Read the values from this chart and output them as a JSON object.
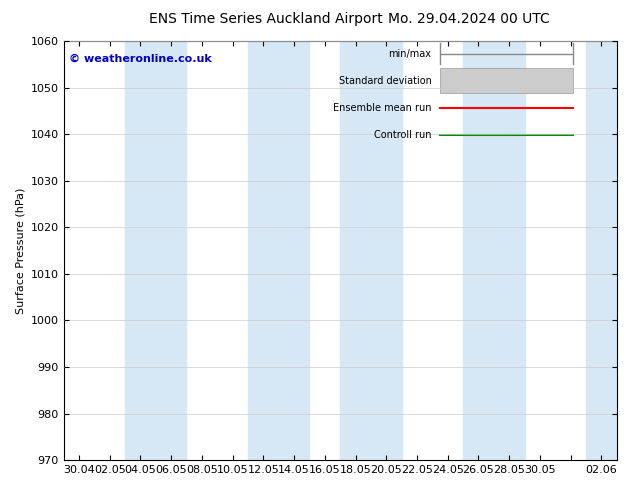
{
  "title": "ENS Time Series Auckland Airport",
  "title2": "Mo. 29.04.2024 00 UTC",
  "ylabel": "Surface Pressure (hPa)",
  "ylim": [
    970,
    1060
  ],
  "yticks": [
    970,
    980,
    990,
    1000,
    1010,
    1020,
    1030,
    1040,
    1050,
    1060
  ],
  "xtick_labels": [
    "30.04",
    "02.05",
    "04.05",
    "06.05",
    "08.05",
    "10.05",
    "12.05",
    "14.05",
    "16.05",
    "18.05",
    "20.05",
    "22.05",
    "24.05",
    "26.05",
    "28.05",
    "30.05",
    "",
    "02.06"
  ],
  "bg_color": "#ffffff",
  "plot_bg_color": "#ffffff",
  "band_color": "#d6e8f5",
  "grid_color": "#cccccc",
  "copyright_text": "© weatheronline.co.uk",
  "copyright_color": "#0000cc",
  "legend_labels": [
    "min/max",
    "Standard deviation",
    "Ensemble mean run",
    "Controll run"
  ],
  "legend_colors": [
    "#999999",
    "#bbbbbb",
    "#ff0000",
    "#008800"
  ],
  "title_fontsize": 10,
  "axis_fontsize": 8,
  "tick_fontsize": 8,
  "band_indices": [
    2,
    3,
    6,
    7,
    9,
    10,
    13,
    14,
    17
  ]
}
